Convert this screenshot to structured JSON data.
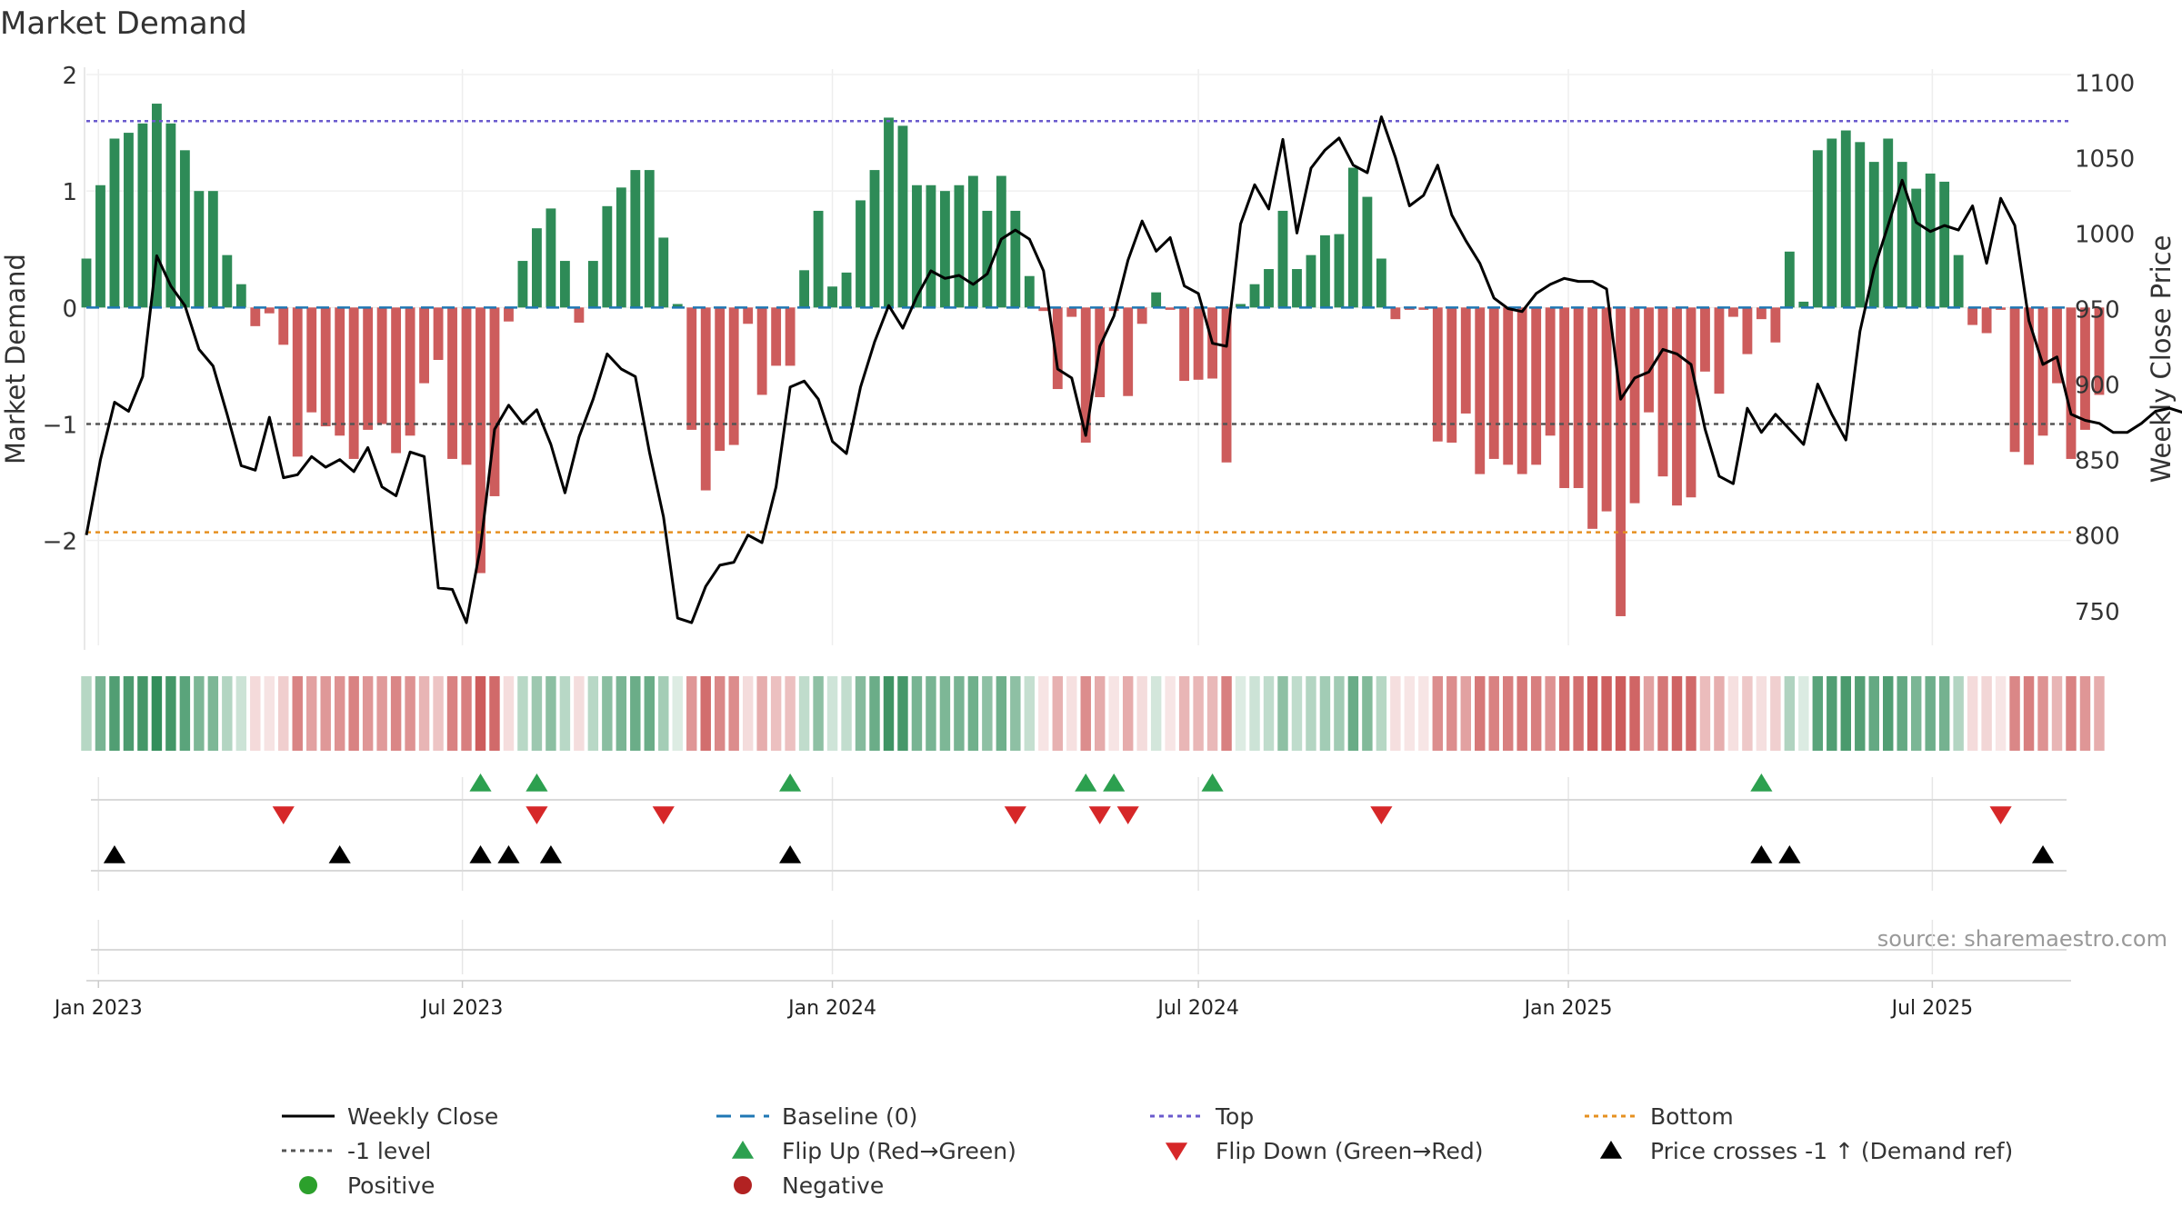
{
  "chart_data": {
    "type": "bar",
    "title": "Market Demand",
    "source_note": "source: sharemaestro.com",
    "ylabel_left": "Market Demand",
    "ylabel_right": "Weekly Close Price",
    "ylim_left": [
      -2.9,
      2.0
    ],
    "ylim_right": [
      727,
      1105
    ],
    "yticks_left": [
      2,
      1,
      0,
      -1,
      -2
    ],
    "yticks_left_labels": [
      "2",
      "1",
      "0",
      "−1",
      "−2"
    ],
    "yticks_right": [
      1100,
      1050,
      1000,
      950,
      900,
      850,
      800,
      750
    ],
    "x_start": "2022-12-26",
    "x_end": "2025-09-08",
    "x_ticks": [
      {
        "date": "2023-01-01",
        "label": "Jan 2023"
      },
      {
        "date": "2023-07-01",
        "label": "Jul 2023"
      },
      {
        "date": "2024-01-01",
        "label": "Jan 2024"
      },
      {
        "date": "2024-07-01",
        "label": "Jul 2024"
      },
      {
        "date": "2025-01-01",
        "label": "Jan 2025"
      },
      {
        "date": "2025-07-01",
        "label": "Jul 2025"
      }
    ],
    "reference_lines": {
      "top": 1.6,
      "baseline": 0,
      "minus_one": -1,
      "bottom": -1.93
    },
    "week_start": "2022-12-26",
    "demand": [
      0.42,
      1.05,
      1.45,
      1.5,
      1.58,
      1.75,
      1.58,
      1.35,
      1.0,
      1.0,
      0.45,
      0.2,
      -0.16,
      -0.05,
      -0.32,
      -1.28,
      -0.9,
      -1.02,
      -1.1,
      -1.3,
      -1.05,
      -1.0,
      -1.25,
      -1.1,
      -0.65,
      -0.45,
      -1.3,
      -1.35,
      -2.28,
      -1.62,
      -0.12,
      0.4,
      0.68,
      0.85,
      0.4,
      -0.13,
      0.4,
      0.87,
      1.03,
      1.18,
      1.18,
      0.6,
      0.03,
      -1.05,
      -1.57,
      -1.23,
      -1.18,
      -0.14,
      -0.75,
      -0.5,
      -0.5,
      0.32,
      0.83,
      0.18,
      0.3,
      0.92,
      1.18,
      1.63,
      1.56,
      1.05,
      1.05,
      1.0,
      1.05,
      1.13,
      0.83,
      1.13,
      0.83,
      0.27,
      -0.03,
      -0.7,
      -0.08,
      -1.16,
      -0.77,
      -0.03,
      -0.76,
      -0.14,
      0.13,
      -0.02,
      -0.63,
      -0.62,
      -0.61,
      -1.33,
      0.03,
      0.2,
      0.33,
      0.83,
      0.33,
      0.45,
      0.62,
      0.63,
      1.2,
      0.95,
      0.42,
      -0.1,
      -0.02,
      -0.02,
      -1.15,
      -1.16,
      -0.91,
      -1.43,
      -1.3,
      -1.35,
      -1.43,
      -1.35,
      -1.1,
      -1.55,
      -1.55,
      -1.9,
      -1.75,
      -2.65,
      -1.68,
      -0.9,
      -1.45,
      -1.7,
      -1.63,
      -0.55,
      -0.74,
      -0.08,
      -0.4,
      -0.1,
      -0.3,
      0.48,
      0.05,
      1.35,
      1.45,
      1.52,
      1.42,
      1.25,
      1.45,
      1.25,
      1.02,
      1.15,
      1.08,
      0.45,
      -0.15,
      -0.22,
      -0.02,
      -1.24,
      -1.35,
      -1.1,
      -0.65,
      -1.3,
      -1.05,
      -0.75
    ],
    "close": [
      800,
      850,
      888,
      882,
      905,
      985,
      965,
      952,
      923,
      912,
      880,
      846,
      843,
      878,
      838,
      840,
      852,
      845,
      850,
      842,
      858,
      832,
      826,
      855,
      852,
      765,
      764,
      742,
      792,
      870,
      886,
      874,
      883,
      860,
      828,
      865,
      890,
      920,
      910,
      905,
      855,
      812,
      745,
      742,
      766,
      780,
      782,
      800,
      795,
      832,
      898,
      902,
      890,
      862,
      854,
      898,
      928,
      952,
      937,
      958,
      975,
      970,
      972,
      966,
      973,
      996,
      1002,
      996,
      975,
      910,
      904,
      866,
      925,
      945,
      982,
      1008,
      988,
      997,
      965,
      960,
      927,
      925,
      1006,
      1032,
      1016,
      1062,
      1000,
      1043,
      1055,
      1063,
      1045,
      1040,
      1077,
      1050,
      1018,
      1025,
      1045,
      1012,
      995,
      980,
      957,
      950,
      948,
      960,
      966,
      970,
      968,
      968,
      963,
      890,
      904,
      908,
      923,
      920,
      913,
      870,
      839,
      834,
      884,
      868,
      880,
      870,
      860,
      900,
      880,
      863,
      935,
      976,
      1005,
      1035,
      1007,
      1001,
      1005,
      1002,
      1018,
      980,
      1023,
      1005,
      942,
      913,
      918,
      880,
      876,
      874,
      868,
      868,
      874,
      882,
      884,
      881
    ],
    "flip_up_dates": [
      "2023-07-10",
      "2023-08-07",
      "2023-12-11",
      "2024-05-06",
      "2024-05-20",
      "2024-07-08",
      "2025-04-07"
    ],
    "flip_down_dates": [
      "2023-04-03",
      "2023-08-07",
      "2023-10-09",
      "2024-04-01",
      "2024-05-13",
      "2024-05-27",
      "2024-09-30",
      "2025-08-04"
    ],
    "price_cross_dates": [
      "2023-01-09",
      "2023-05-01",
      "2023-07-10",
      "2023-07-24",
      "2023-08-14",
      "2023-12-11",
      "2025-04-07",
      "2025-04-21",
      "2025-08-25"
    ],
    "legend": [
      {
        "label": "Weekly Close",
        "kind": "line-solid",
        "color": "#000000"
      },
      {
        "label": "Baseline (0)",
        "kind": "line-dash",
        "color": "#1f77b4"
      },
      {
        "label": "Top",
        "kind": "line-dot",
        "color": "#6a5acd"
      },
      {
        "label": "Bottom",
        "kind": "line-dot",
        "color": "#e69020"
      },
      {
        "label": "-1 level",
        "kind": "line-dot",
        "color": "#555555"
      },
      {
        "label": "Flip Up (Red→Green)",
        "kind": "tri-up",
        "color": "#2ca04f"
      },
      {
        "label": "Flip Down (Green→Red)",
        "kind": "tri-down",
        "color": "#d62728"
      },
      {
        "label": "Price crosses -1 ↑ (Demand ref)",
        "kind": "tri-up",
        "color": "#000000"
      },
      {
        "label": "Positive",
        "kind": "dot",
        "color": "#2ca02c"
      },
      {
        "label": "Negative",
        "kind": "dot",
        "color": "#b22222"
      }
    ],
    "colors": {
      "positive_bar": "#2e8b57",
      "negative_bar": "#cd5c5c",
      "close_line": "#000000",
      "baseline": "#1f77b4",
      "top": "#6a5acd",
      "bottom": "#e69020",
      "minus_one": "#555555",
      "flip_up": "#2ca04f",
      "flip_down": "#d62728",
      "price_cross": "#000000"
    }
  }
}
